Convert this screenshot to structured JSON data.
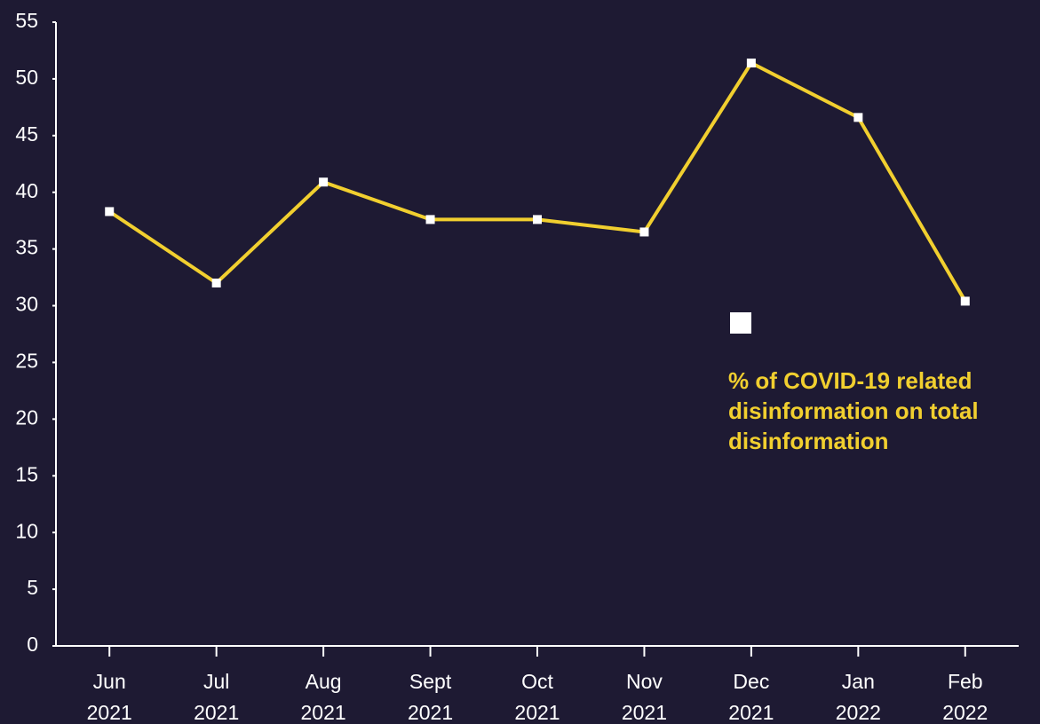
{
  "chart_data": {
    "type": "line",
    "categories": [
      "Jun 2021",
      "Jul 2021",
      "Aug 2021",
      "Sept 2021",
      "Oct 2021",
      "Nov 2021",
      "Dec 2021",
      "Jan 2022",
      "Feb 2022"
    ],
    "series": [
      {
        "name": "% of COVID-19 related disinformation on total disinformation",
        "color": "#f1cf2f",
        "marker_color": "#ffffff",
        "values": [
          38.3,
          32.0,
          40.9,
          37.6,
          37.6,
          36.5,
          51.4,
          46.6,
          30.4
        ]
      }
    ],
    "ylim": [
      0,
      55
    ],
    "yticks": [
      0,
      5,
      10,
      15,
      20,
      25,
      30,
      35,
      40,
      45,
      50,
      55
    ],
    "grid": false
  }
}
